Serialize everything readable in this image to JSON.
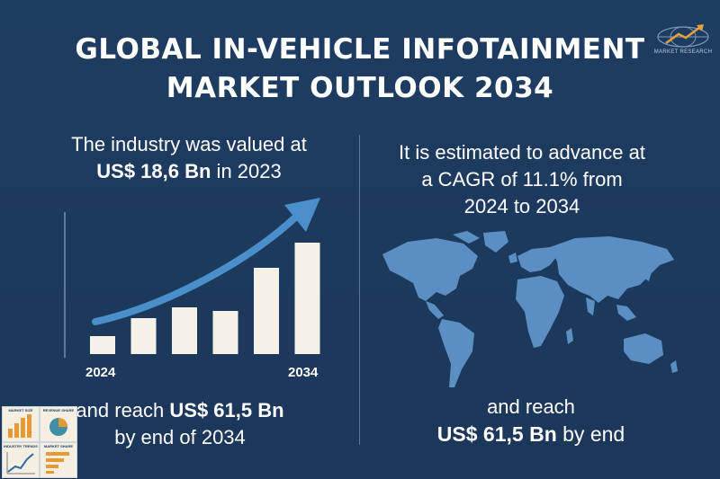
{
  "title": {
    "line1": "GLOBAL IN-VEHICLE INFOTAINMENT",
    "line2": "MARKET OUTLOOK 2034"
  },
  "logo": {
    "text": "MARKET RESEARCH"
  },
  "left": {
    "intro": "The industry was valued at",
    "value": "US$ 18,6 Bn",
    "value_suffix": " in 2023",
    "reach_prefix": "and reach ",
    "reach_value": "US$ 61,5 Bn",
    "reach_suffix": "by end of 2034"
  },
  "chart_data": {
    "type": "bar",
    "categories": [
      "2024",
      "",
      "",
      "",
      "",
      "2034"
    ],
    "values": [
      1,
      2,
      2.6,
      2.4,
      4.8,
      6.2
    ],
    "x_tick_labels": [
      "2024",
      "2034"
    ],
    "trend": "rising arrow"
  },
  "right": {
    "line1": "It is estimated to advance at",
    "line2": "a CAGR of 11.1% from",
    "line3": "2024 to 2034",
    "reach_line": "and reach",
    "reach_value": "US$ 61,5 Bn",
    "reach_suffix": " by end"
  },
  "thumbnails": [
    {
      "label": "MARKET SIZE",
      "icon": "bar-chart-icon"
    },
    {
      "label": "REVENUE SHARE",
      "icon": "pie-chart-icon"
    },
    {
      "label": "INDUSTRY TRENDS",
      "icon": "line-chart-icon"
    },
    {
      "label": "MARKET SHARE",
      "icon": "horizontal-bars-icon"
    }
  ],
  "colors": {
    "background": "#1e3d62",
    "bar": "#f6f1e6",
    "arrow": "#4a8fc9",
    "map": "#5b8fc4",
    "text": "#ffffff"
  }
}
